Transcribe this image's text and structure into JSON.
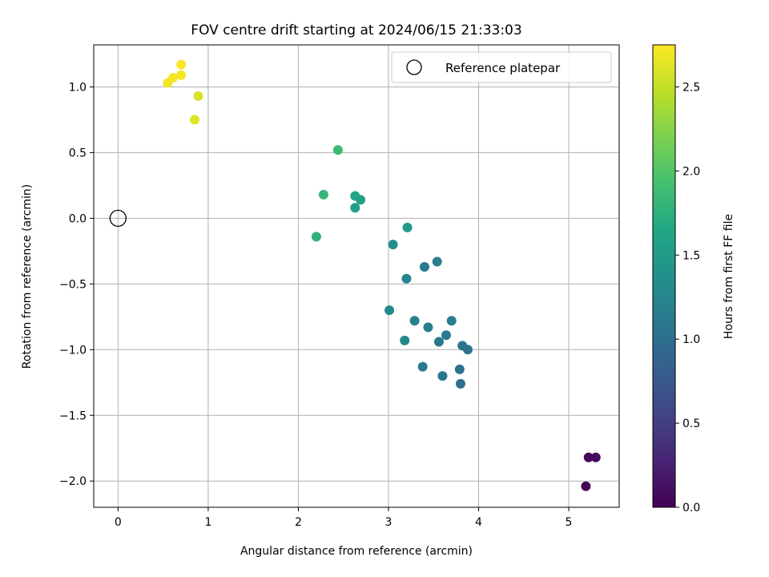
{
  "chart_data": {
    "type": "scatter",
    "title": "FOV centre drift starting at 2024/06/15 21:33:03",
    "xlabel": "Angular distance from reference (arcmin)",
    "ylabel": "Rotation from reference (arcmin)",
    "xlim": [
      -0.27,
      5.56
    ],
    "ylim": [
      -2.2,
      1.32
    ],
    "xticks": [
      0,
      1,
      2,
      3,
      4,
      5
    ],
    "xtick_labels": [
      "0",
      "1",
      "2",
      "3",
      "4",
      "5"
    ],
    "yticks": [
      -2.0,
      -1.5,
      -1.0,
      -0.5,
      0.0,
      0.5,
      1.0
    ],
    "ytick_labels": [
      "−2.0",
      "−1.5",
      "−1.0",
      "−0.5",
      "0.0",
      "0.5",
      "1.0"
    ],
    "grid": true,
    "legend": {
      "position": "upper-right",
      "entries": [
        "Reference platepar"
      ]
    },
    "reference_point": {
      "label": "Reference platepar",
      "x": 0.0,
      "y": 0.0
    },
    "colorbar": {
      "label": "Hours from first FF file",
      "colormap": "viridis",
      "range": [
        0.0,
        2.75
      ],
      "ticks": [
        0.0,
        0.5,
        1.0,
        1.5,
        2.0,
        2.5
      ],
      "tick_labels": [
        "0.0",
        "0.5",
        "1.0",
        "1.5",
        "2.0",
        "2.5"
      ]
    },
    "points": [
      {
        "x": 5.19,
        "y": -2.04,
        "c": 0.02
      },
      {
        "x": 5.22,
        "y": -1.82,
        "c": 0.05
      },
      {
        "x": 5.3,
        "y": -1.82,
        "c": 0.08
      },
      {
        "x": 3.8,
        "y": -1.26,
        "c": 1.0
      },
      {
        "x": 3.79,
        "y": -1.15,
        "c": 1.03
      },
      {
        "x": 3.6,
        "y": -1.2,
        "c": 1.07
      },
      {
        "x": 3.38,
        "y": -1.13,
        "c": 1.1
      },
      {
        "x": 3.88,
        "y": -1.0,
        "c": 1.03
      },
      {
        "x": 3.82,
        "y": -0.97,
        "c": 1.06
      },
      {
        "x": 3.56,
        "y": -0.94,
        "c": 1.09
      },
      {
        "x": 3.64,
        "y": -0.89,
        "c": 1.12
      },
      {
        "x": 3.7,
        "y": -0.78,
        "c": 1.14
      },
      {
        "x": 3.44,
        "y": -0.83,
        "c": 1.17
      },
      {
        "x": 3.29,
        "y": -0.78,
        "c": 1.2
      },
      {
        "x": 3.18,
        "y": -0.93,
        "c": 1.27
      },
      {
        "x": 3.01,
        "y": -0.7,
        "c": 1.3
      },
      {
        "x": 3.4,
        "y": -0.37,
        "c": 1.12
      },
      {
        "x": 3.54,
        "y": -0.33,
        "c": 1.15
      },
      {
        "x": 3.2,
        "y": -0.46,
        "c": 1.23
      },
      {
        "x": 3.05,
        "y": -0.2,
        "c": 1.35
      },
      {
        "x": 3.21,
        "y": -0.07,
        "c": 1.48
      },
      {
        "x": 2.63,
        "y": 0.08,
        "c": 1.52
      },
      {
        "x": 2.69,
        "y": 0.14,
        "c": 1.56
      },
      {
        "x": 2.63,
        "y": 0.17,
        "c": 1.6
      },
      {
        "x": 2.2,
        "y": -0.14,
        "c": 1.76
      },
      {
        "x": 2.28,
        "y": 0.18,
        "c": 1.8
      },
      {
        "x": 2.44,
        "y": 0.52,
        "c": 1.86
      },
      {
        "x": 0.85,
        "y": 0.75,
        "c": 2.62
      },
      {
        "x": 0.89,
        "y": 0.93,
        "c": 2.6
      },
      {
        "x": 0.55,
        "y": 1.03,
        "c": 2.7
      },
      {
        "x": 0.61,
        "y": 1.07,
        "c": 2.71
      },
      {
        "x": 0.7,
        "y": 1.09,
        "c": 2.72
      },
      {
        "x": 0.7,
        "y": 1.17,
        "c": 2.74
      }
    ]
  }
}
